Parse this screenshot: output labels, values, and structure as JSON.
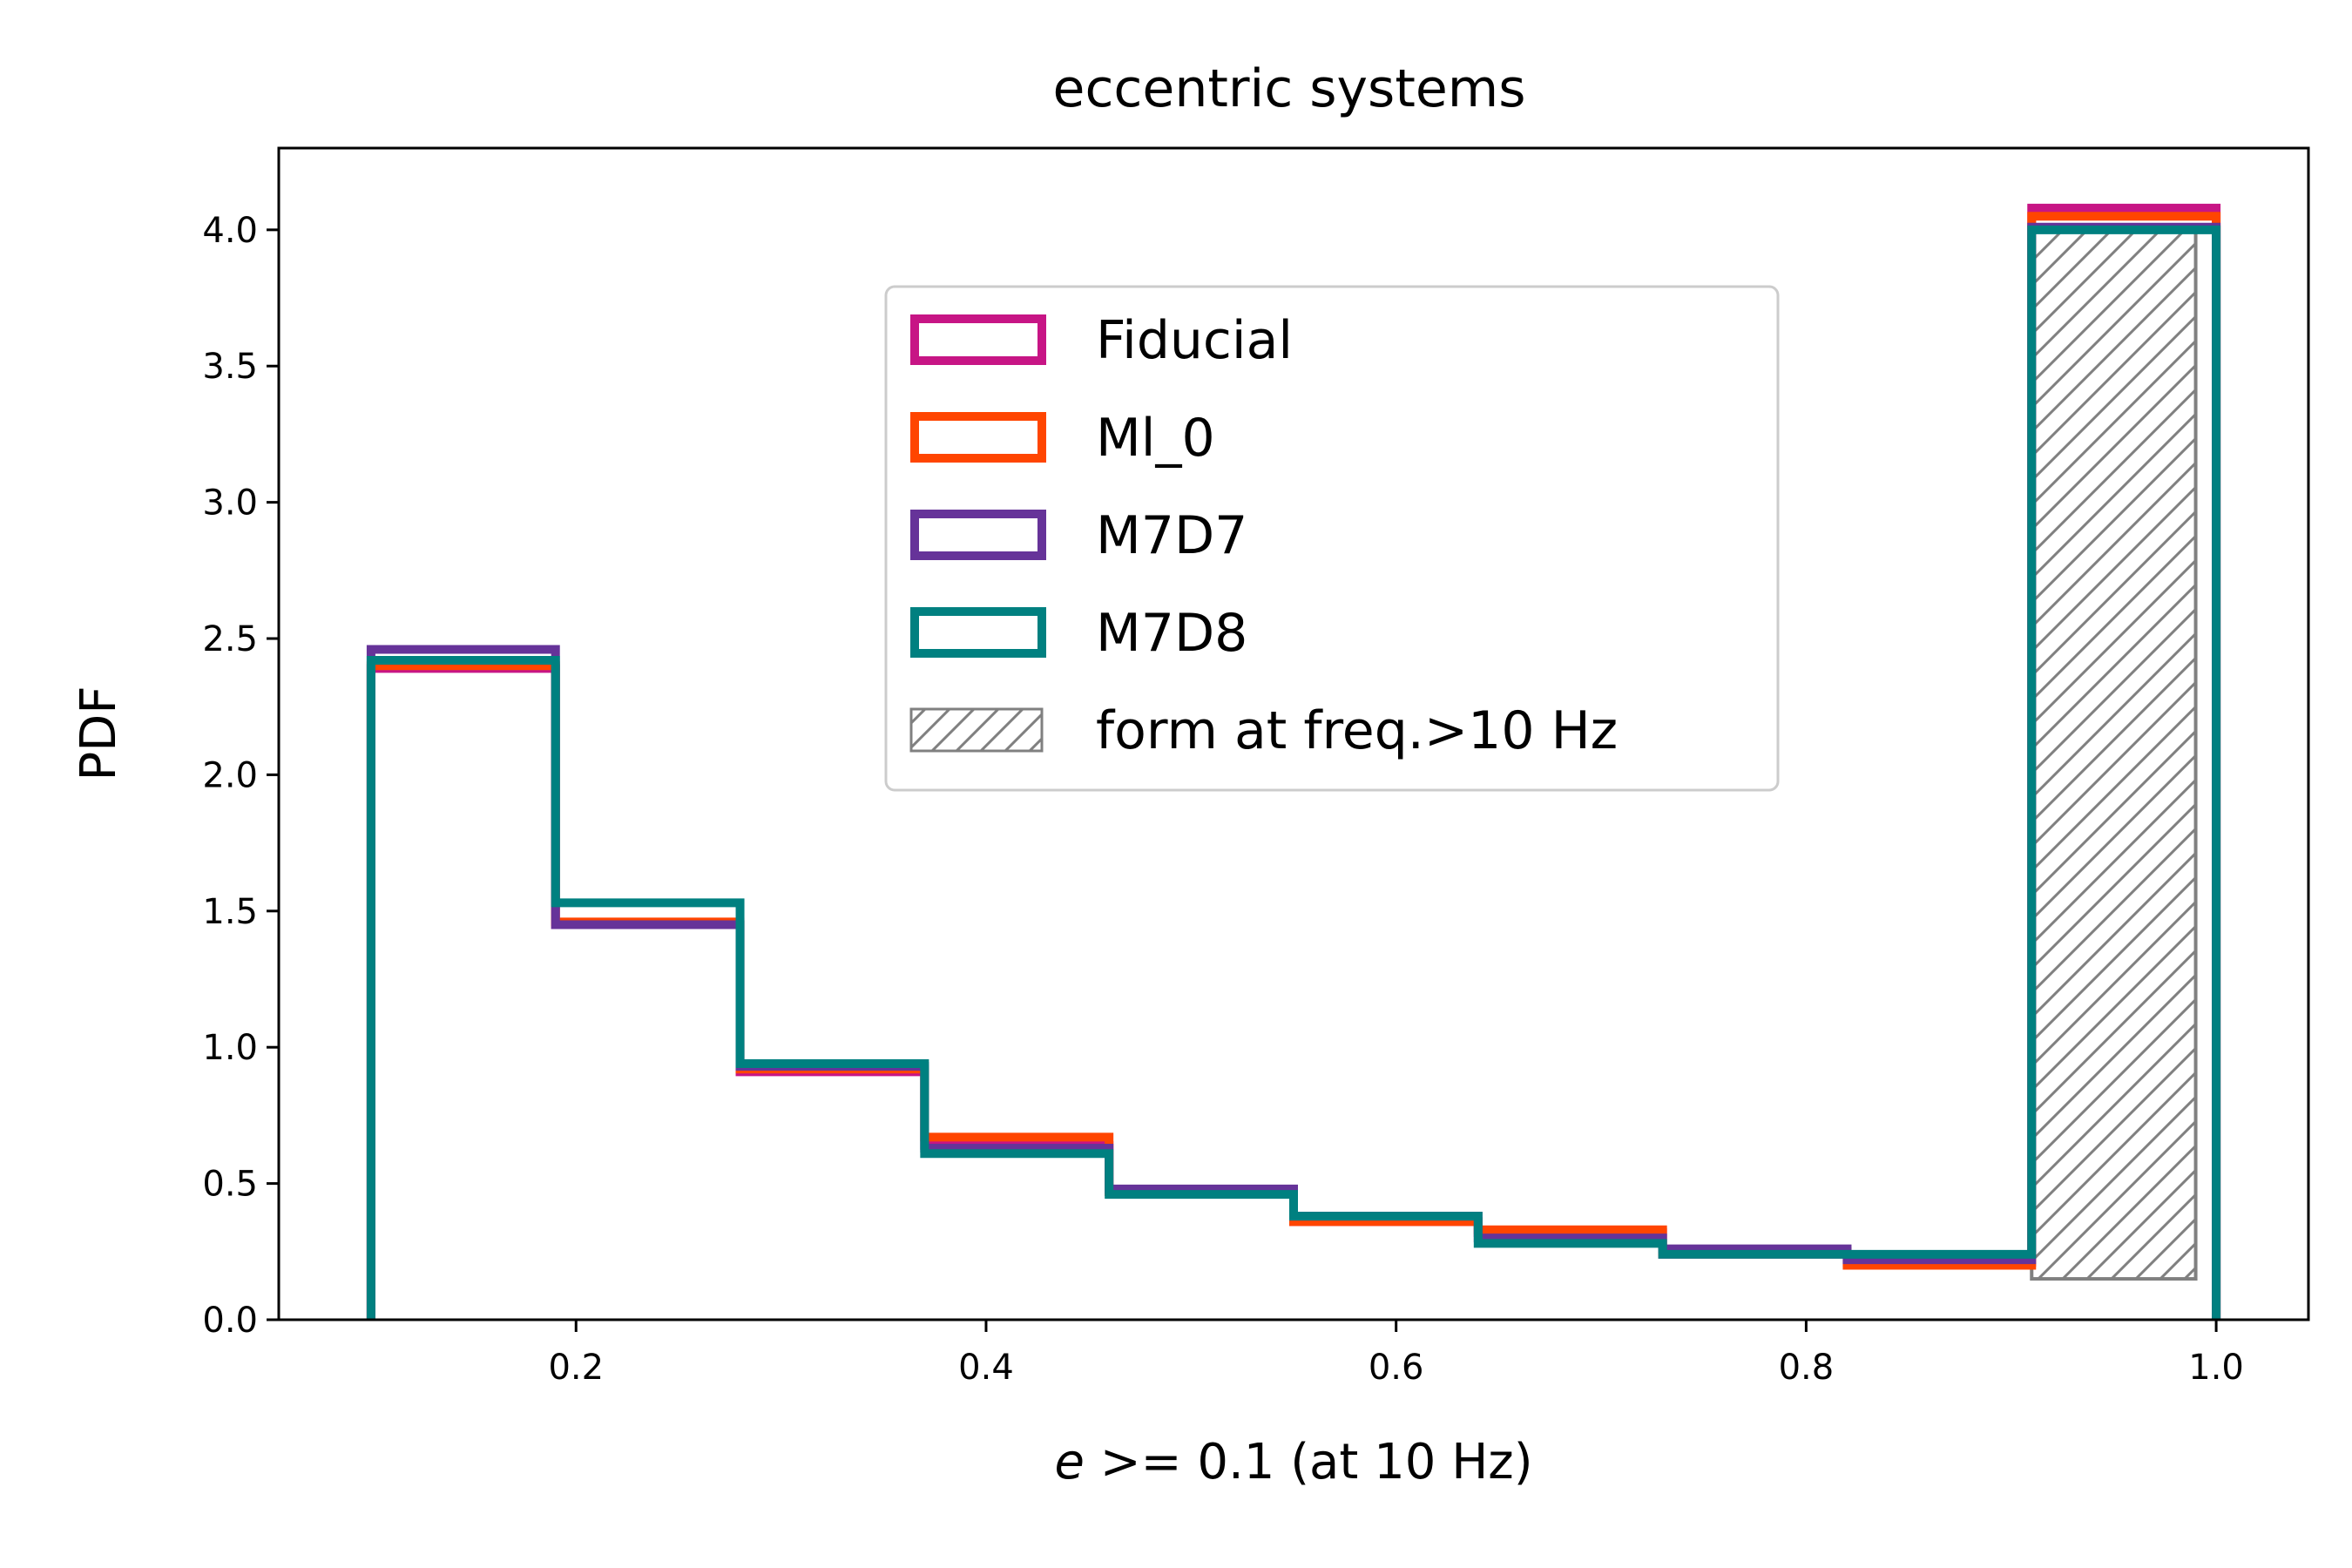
{
  "chart_data": {
    "type": "histogram-step",
    "title": "eccentric systems",
    "xlabel_italic": "e",
    "xlabel_rest": " >= 0.1 (at 10 Hz)",
    "ylabel": "PDF",
    "xlim": [
      0.055,
      1.045
    ],
    "ylim": [
      0,
      4.3
    ],
    "bin_edges": [
      0.1,
      0.19,
      0.28,
      0.37,
      0.46,
      0.55,
      0.64,
      0.73,
      0.82,
      0.91,
      1.0
    ],
    "x_ticks": [
      0.2,
      0.4,
      0.6,
      0.8,
      1.0
    ],
    "x_tick_labels": [
      "0.2",
      "0.4",
      "0.6",
      "0.8",
      "1.0"
    ],
    "y_ticks": [
      0.0,
      0.5,
      1.0,
      1.5,
      2.0,
      2.5,
      3.0,
      3.5,
      4.0
    ],
    "y_tick_labels": [
      "0.0",
      "0.5",
      "1.0",
      "1.5",
      "2.0",
      "2.5",
      "3.0",
      "3.5",
      "4.0"
    ],
    "series": [
      {
        "name": "Fiducial",
        "color": "#c71585",
        "values": [
          2.39,
          1.45,
          0.91,
          0.64,
          0.47,
          0.36,
          0.32,
          0.24,
          0.21,
          4.08
        ]
      },
      {
        "name": "Ml_0",
        "color": "#ff4500",
        "values": [
          2.4,
          1.46,
          0.92,
          0.67,
          0.47,
          0.36,
          0.33,
          0.25,
          0.2,
          4.05
        ]
      },
      {
        "name": "M7D7",
        "color": "#663399",
        "values": [
          2.46,
          1.45,
          0.93,
          0.63,
          0.48,
          0.38,
          0.3,
          0.26,
          0.22,
          4.01
        ]
      },
      {
        "name": "M7D8",
        "color": "#008080",
        "values": [
          2.42,
          1.53,
          0.94,
          0.61,
          0.46,
          0.38,
          0.28,
          0.24,
          0.24,
          4.0
        ]
      }
    ],
    "hatched_bar": {
      "name": "form at freq.>10 Hz",
      "color": "#808080",
      "x0": 0.91,
      "x1": 0.99,
      "bottom": 0.15,
      "top": 4.0
    },
    "legend_position": "upper center"
  }
}
